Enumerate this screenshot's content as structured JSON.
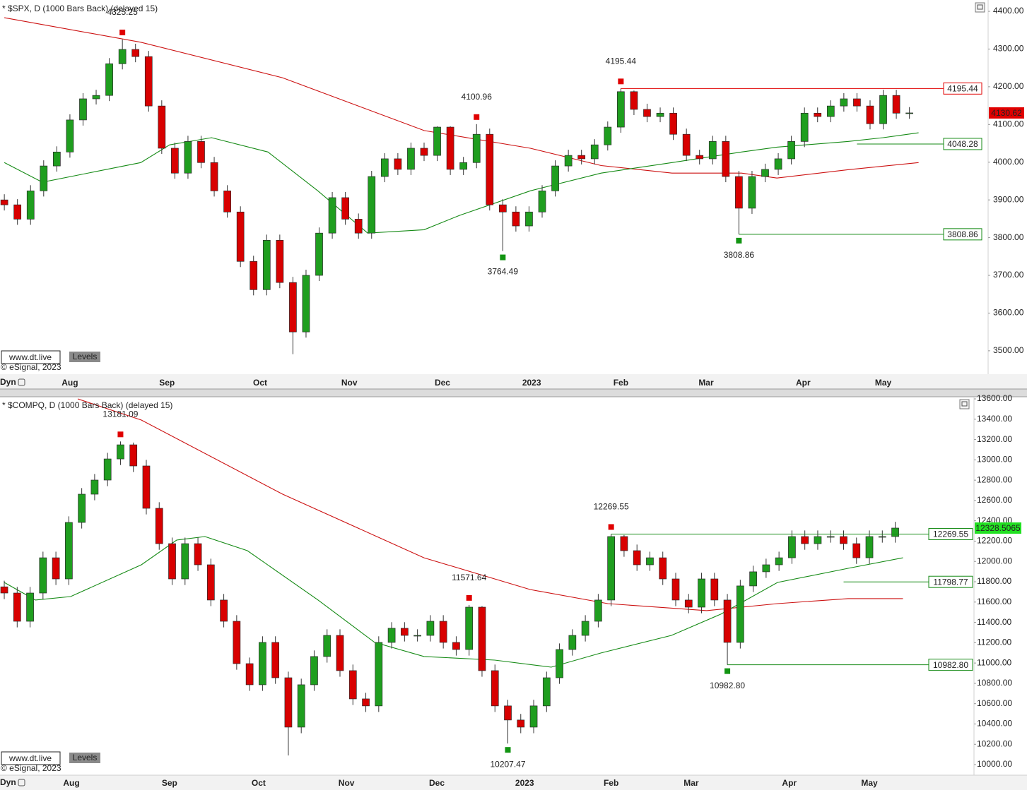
{
  "chart_data": [
    {
      "type": "candlestick",
      "title": "* $SPX, D (1000 Bars Back) (delayed 15)",
      "watermark": "www.dt.live",
      "button": "Levels",
      "copyright": "© eSignal, 2023",
      "footer_label": "Dyn",
      "up_color": "#1f9e1f",
      "down_color": "#d80000",
      "high_marker_color": "#e00000",
      "low_marker_color": "#129412",
      "last_price_color": "#e00000",
      "last_price_text_color": "#ffffff",
      "xlim": [
        -0.33,
        75
      ],
      "ylim": [
        3438,
        4430
      ],
      "xticks": [
        {
          "value": 5,
          "label": "Aug"
        },
        {
          "value": 12.4,
          "label": "Sep"
        },
        {
          "value": 19.5,
          "label": "Oct"
        },
        {
          "value": 26.3,
          "label": "Nov"
        },
        {
          "value": 33.4,
          "label": "Dec"
        },
        {
          "value": 40.2,
          "label": "2023"
        },
        {
          "value": 47,
          "label": "Feb"
        },
        {
          "value": 53.5,
          "label": "Mar"
        },
        {
          "value": 60.9,
          "label": "Apr"
        },
        {
          "value": 67,
          "label": "May"
        }
      ],
      "yticks": [
        {
          "value": 3500,
          "label": "3500.00"
        },
        {
          "value": 3600,
          "label": "3600.00"
        },
        {
          "value": 3700,
          "label": "3700.00"
        },
        {
          "value": 3800,
          "label": "3800.00"
        },
        {
          "value": 3900,
          "label": "3900.00"
        },
        {
          "value": 4000,
          "label": "4000.00"
        },
        {
          "value": 4100,
          "label": "4100.00"
        },
        {
          "value": 4200,
          "label": "4200.00"
        },
        {
          "value": 4300,
          "label": "4300.00"
        },
        {
          "value": 4400,
          "label": "4400.00"
        }
      ],
      "open": [
        3900,
        3887,
        3849,
        3924,
        3990,
        4027,
        4112,
        4168,
        4177,
        4261,
        4299,
        4280,
        4149,
        4037,
        3971,
        4055,
        3999,
        3924,
        3868,
        3737,
        3662,
        3793,
        3681,
        3550,
        3700,
        3812,
        3906,
        3849,
        3812,
        3962,
        4009,
        3981,
        4037,
        4018,
        4093,
        3981,
        3999,
        4074,
        3887,
        3868,
        3831,
        3868,
        3924,
        3990,
        4018,
        4009,
        4046,
        4093,
        4187,
        4140,
        4121,
        4130,
        4074,
        4018,
        4009,
        4055,
        3962,
        3878,
        3962,
        3981,
        4009,
        4055,
        4130,
        4121,
        4149,
        4168,
        4149,
        4102,
        4177,
        4130
      ],
      "high": [
        3915,
        3902,
        3939,
        4005,
        4042,
        4127,
        4183,
        4192,
        4276,
        4325.25,
        4314,
        4295,
        4164,
        4052,
        4070,
        4070,
        4014,
        3939,
        3883,
        3752,
        3808,
        3808,
        3696,
        3715,
        3827,
        3921,
        3921,
        3864,
        3977,
        4024,
        4024,
        4052,
        4052,
        4095,
        4095,
        4014,
        4100.96,
        4089,
        3902,
        3883,
        3883,
        3939,
        4005,
        4033,
        4033,
        4061,
        4108,
        4195.44,
        4190,
        4155,
        4145,
        4145,
        4089,
        4033,
        4070,
        4070,
        3977,
        3977,
        3996,
        4024,
        4070,
        4145,
        4145,
        4164,
        4183,
        4183,
        4164,
        4192,
        4192,
        4146
      ],
      "low": [
        3872,
        3834,
        3834,
        3909,
        3975,
        4012,
        4097,
        4153,
        4162,
        4246,
        4265,
        4134,
        4022,
        3956,
        3956,
        3984,
        3909,
        3853,
        3722,
        3647,
        3647,
        3666,
        3491,
        3535,
        3685,
        3797,
        3834,
        3797,
        3797,
        3947,
        3966,
        3966,
        4003,
        4003,
        3966,
        3966,
        3984,
        3872,
        3764.49,
        3816,
        3816,
        3853,
        3909,
        3975,
        3994,
        3994,
        4031,
        4078,
        4125,
        4106,
        4106,
        4059,
        4003,
        3994,
        3994,
        3947,
        3808.86,
        3863,
        3947,
        3966,
        3994,
        4040,
        4106,
        4106,
        4134,
        4134,
        4087,
        4087,
        4115,
        4115
      ],
      "close": [
        3887,
        3849,
        3924,
        3990,
        4027,
        4112,
        4168,
        4177,
        4261,
        4299,
        4280,
        4149,
        4037,
        3971,
        4055,
        3999,
        3924,
        3868,
        3737,
        3662,
        3793,
        3681,
        3550,
        3700,
        3812,
        3906,
        3849,
        3812,
        3962,
        4009,
        3981,
        4037,
        4018,
        4093,
        3981,
        3999,
        4074,
        3887,
        3868,
        3831,
        3868,
        3924,
        3990,
        4018,
        4009,
        4046,
        4093,
        4187,
        4140,
        4121,
        4130,
        4074,
        4018,
        4009,
        4055,
        3962,
        3878,
        3962,
        3981,
        4009,
        4055,
        4130,
        4121,
        4149,
        4168,
        4149,
        4102,
        4177,
        4130,
        4130.62
      ],
      "moving_averages": [
        {
          "color": "#cc1111",
          "x": [
            0,
            10.4,
            21.2,
            32,
            40.1,
            45.5,
            50.9,
            56.2,
            58.9,
            64.3,
            69.7
          ],
          "values": [
            4383,
            4318,
            4224,
            4084,
            4037,
            3991,
            3971,
            3971,
            3958,
            3980,
            3999
          ]
        },
        {
          "color": "#158a15",
          "x": [
            0,
            2.9,
            10.4,
            12.6,
            15.8,
            20.1,
            23.9,
            27.7,
            32,
            34.7,
            40.1,
            45.5,
            50.9,
            56.2,
            58.9,
            64.3,
            67,
            69.7
          ],
          "values": [
            3999,
            3947,
            3999,
            4046,
            4065,
            4027,
            3924,
            3812,
            3821,
            3859,
            3924,
            3971,
            3999,
            4027,
            4040,
            4055,
            4065,
            4078
          ]
        }
      ],
      "annotations": [
        4325.25,
        4100.96,
        4195.44,
        3764.49,
        3808.86
      ],
      "levels": [
        {
          "value": 4195.44,
          "color": "#e00000"
        },
        {
          "value": 4048.28,
          "color": "#158a15"
        },
        {
          "value": 3808.86,
          "color": "#158a15"
        }
      ]
    },
    {
      "type": "candlestick",
      "title": "* $COMPQ, D (1000 Bars Back) (delayed 15)",
      "watermark": "www.dt.live",
      "button": "Levels",
      "copyright": "© eSignal, 2023",
      "footer_label": "Dyn",
      "up_color": "#1f9e1f",
      "down_color": "#d80000",
      "high_marker_color": "#e00000",
      "low_marker_color": "#129412",
      "last_price_color": "#22e022",
      "last_price_text_color": "#000000",
      "xlim": [
        -0.33,
        75.1
      ],
      "ylim": [
        9896,
        13621
      ],
      "xticks": [
        {
          "value": 5.2,
          "label": "Aug"
        },
        {
          "value": 12.8,
          "label": "Sep"
        },
        {
          "value": 19.7,
          "label": "Oct"
        },
        {
          "value": 26.5,
          "label": "Nov"
        },
        {
          "value": 33.5,
          "label": "Dec"
        },
        {
          "value": 40.3,
          "label": "2023"
        },
        {
          "value": 47,
          "label": "Feb"
        },
        {
          "value": 53.2,
          "label": "Mar"
        },
        {
          "value": 60.8,
          "label": "Apr"
        },
        {
          "value": 67,
          "label": "May"
        }
      ],
      "yticks": [
        {
          "value": 10000,
          "label": "10000.00"
        },
        {
          "value": 10200,
          "label": "10200.00"
        },
        {
          "value": 10400,
          "label": "10400.00"
        },
        {
          "value": 10600,
          "label": "10600.00"
        },
        {
          "value": 10800,
          "label": "10800.00"
        },
        {
          "value": 11000,
          "label": "11000.00"
        },
        {
          "value": 11200,
          "label": "11200.00"
        },
        {
          "value": 11400,
          "label": "11400.00"
        },
        {
          "value": 11600,
          "label": "11600.00"
        },
        {
          "value": 11800,
          "label": "11800.00"
        },
        {
          "value": 12000,
          "label": "12000.00"
        },
        {
          "value": 12200,
          "label": "12200.00"
        },
        {
          "value": 12400,
          "label": "12400.00"
        },
        {
          "value": 12600,
          "label": "12600.00"
        },
        {
          "value": 12800,
          "label": "12800.00"
        },
        {
          "value": 13000,
          "label": "13000.00"
        },
        {
          "value": 13200,
          "label": "13200.00"
        },
        {
          "value": 13400,
          "label": "13400.00"
        },
        {
          "value": 13600,
          "label": "13600.00"
        }
      ],
      "open": [
        11750,
        11689,
        11411,
        11689,
        12036,
        11828,
        12384,
        12662,
        12801,
        13009,
        13148,
        12940,
        12523,
        12175,
        11828,
        12175,
        11967,
        11620,
        11411,
        10994,
        10786,
        11203,
        10855,
        10369,
        10786,
        11064,
        11272,
        10925,
        10647,
        10578,
        11203,
        11342,
        11272,
        11272,
        11411,
        11203,
        11133,
        11550,
        10925,
        10578,
        10439,
        10369,
        10578,
        10855,
        11133,
        11272,
        11411,
        11620,
        12245,
        12106,
        11967,
        12036,
        11828,
        11620,
        11550,
        11828,
        11620,
        11203,
        11759,
        11898,
        11967,
        12036,
        12245,
        12175,
        12245,
        12245,
        12175,
        12036,
        12245,
        12245
      ],
      "high": [
        11810,
        11749,
        11749,
        12096,
        12096,
        12444,
        12722,
        12861,
        13069,
        13181.09,
        13170,
        13000,
        12583,
        12235,
        12235,
        12235,
        12027,
        11680,
        11471,
        11054,
        11263,
        11263,
        10915,
        10846,
        11124,
        11332,
        11332,
        10985,
        10707,
        11263,
        11402,
        11402,
        11332,
        11471,
        11471,
        11263,
        11571.64,
        11560,
        10985,
        10638,
        10499,
        10638,
        10915,
        11193,
        11332,
        11471,
        11680,
        12269.55,
        12260,
        12166,
        12096,
        12096,
        11888,
        11680,
        11888,
        11888,
        11680,
        11819,
        11958,
        12027,
        12096,
        12305,
        12305,
        12305,
        12305,
        12305,
        12235,
        12305,
        12305,
        12390
      ],
      "low": [
        11629,
        11351,
        11351,
        11629,
        11768,
        11768,
        12324,
        12602,
        12741,
        12949,
        12880,
        12463,
        12115,
        11768,
        11768,
        11907,
        11560,
        11351,
        10934,
        10726,
        10726,
        10795,
        10090,
        10309,
        10726,
        11004,
        10865,
        10587,
        10518,
        10518,
        11143,
        11212,
        11212,
        11212,
        11143,
        11073,
        11073,
        10865,
        10518,
        10207.47,
        10309,
        10309,
        10518,
        10795,
        11073,
        11212,
        11351,
        11560,
        12046,
        11907,
        11907,
        11768,
        11560,
        11490,
        11490,
        11560,
        10982.8,
        11143,
        11699,
        11838,
        11907,
        11976,
        12115,
        12115,
        12185,
        12115,
        11976,
        11976,
        12185,
        12185
      ],
      "close": [
        11689,
        11411,
        11689,
        12036,
        11828,
        12384,
        12662,
        12801,
        13009,
        13148,
        12940,
        12523,
        12175,
        11828,
        12175,
        11967,
        11620,
        11411,
        10994,
        10786,
        11203,
        10855,
        10369,
        10786,
        11064,
        11272,
        10925,
        10647,
        10578,
        11203,
        11342,
        11272,
        11272,
        11411,
        11203,
        11133,
        11550,
        10925,
        10578,
        10439,
        10369,
        10578,
        10855,
        11133,
        11272,
        11411,
        11620,
        12245,
        12106,
        11967,
        12036,
        11828,
        11620,
        11550,
        11828,
        11620,
        11203,
        11759,
        11898,
        11967,
        12036,
        12245,
        12175,
        12245,
        12245,
        12175,
        12036,
        12245,
        12245,
        12328.5065
      ],
      "moving_averages": [
        {
          "color": "#cc1111",
          "x": [
            5.69,
            10.62,
            21.56,
            32.51,
            40.72,
            46.74,
            54.4,
            59.88,
            65.35,
            69.6
          ],
          "values": [
            13600,
            13392,
            12662,
            12036,
            11724,
            11585,
            11516,
            11585,
            11634,
            11634
          ]
        },
        {
          "color": "#158a15",
          "x": [
            0,
            2.41,
            5.14,
            10.62,
            13.35,
            15.54,
            18.83,
            24.3,
            28.68,
            32.51,
            37.98,
            42.36,
            46.19,
            51.67,
            55.5,
            59.88,
            65.35,
            69.6
          ],
          "values": [
            11793,
            11620,
            11654,
            11967,
            12210,
            12245,
            12106,
            11620,
            11203,
            11064,
            11029,
            10959,
            11098,
            11272,
            11481,
            11793,
            11932,
            12036
          ]
        }
      ],
      "annotations": [
        13181.09,
        11571.64,
        10207.47,
        12269.55,
        {
          "value": 10982.8,
          "label": "10982.80"
        }
      ],
      "levels": [
        {
          "value": 12269.55,
          "color": "#158a15"
        },
        {
          "value": 11798.77,
          "color": "#158a15"
        },
        {
          "value": 10982.8,
          "label": "10982.80",
          "color": "#158a15"
        }
      ]
    }
  ]
}
